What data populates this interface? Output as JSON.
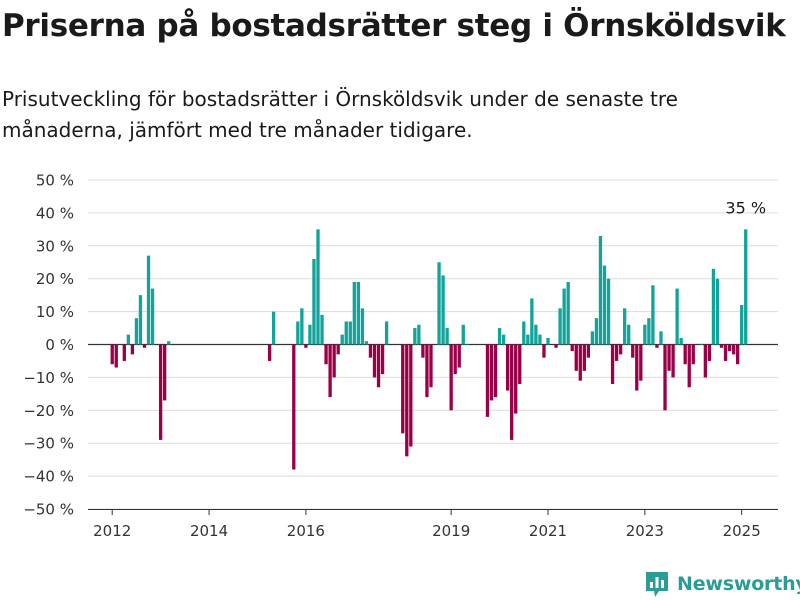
{
  "title": "Priserna på bostadsrätter steg i Örnsköldsvik",
  "subtitle": "Prisutveckling för bostadsrätter i Örnsköldsvik under de senaste tre månaderna, jämfört med tre månader tidigare.",
  "brand": {
    "name": "Newsworthy",
    "color": "#2a9d97"
  },
  "chart_data": {
    "type": "bar",
    "title": "",
    "xlabel": "",
    "ylabel": "",
    "ylim": [
      -50,
      50
    ],
    "y_ticks": [
      50,
      40,
      30,
      20,
      10,
      0,
      -10,
      -20,
      -30,
      -40,
      -50
    ],
    "y_tick_labels": [
      "50 %",
      "40 %",
      "30 %",
      "20 %",
      "10 %",
      "0 %",
      "−10 %",
      "−20 %",
      "−30 %",
      "−40 %",
      "−50 %"
    ],
    "x_ticks": [
      2012,
      2014,
      2016,
      2019,
      2021,
      2023,
      2025
    ],
    "x_tick_labels": [
      "2012",
      "2014",
      "2016",
      "2019",
      "2021",
      "2023",
      "2025"
    ],
    "grid": true,
    "legend": "none",
    "colors": {
      "positive": "#12a39b",
      "negative": "#9a0047"
    },
    "annotation": {
      "label": "35 %",
      "point": "2025-02"
    },
    "x": [
      "2012-01",
      "2012-02",
      "2012-04",
      "2012-05",
      "2012-06",
      "2012-07",
      "2012-08",
      "2012-09",
      "2012-10",
      "2012-11",
      "2013-01",
      "2013-02",
      "2013-03",
      "2015-04",
      "2015-05",
      "2015-10",
      "2015-11",
      "2015-12",
      "2016-01",
      "2016-02",
      "2016-03",
      "2016-04",
      "2016-05",
      "2016-06",
      "2016-07",
      "2016-08",
      "2016-09",
      "2016-10",
      "2016-11",
      "2016-12",
      "2017-01",
      "2017-02",
      "2017-03",
      "2017-04",
      "2017-05",
      "2017-06",
      "2017-07",
      "2017-08",
      "2017-09",
      "2018-01",
      "2018-02",
      "2018-03",
      "2018-04",
      "2018-05",
      "2018-06",
      "2018-07",
      "2018-08",
      "2018-10",
      "2018-11",
      "2018-12",
      "2019-01",
      "2019-02",
      "2019-03",
      "2019-04",
      "2019-05",
      "2019-10",
      "2019-11",
      "2019-12",
      "2020-01",
      "2020-02",
      "2020-03",
      "2020-04",
      "2020-05",
      "2020-06",
      "2020-07",
      "2020-08",
      "2020-09",
      "2020-10",
      "2020-11",
      "2020-12",
      "2021-01",
      "2021-03",
      "2021-04",
      "2021-05",
      "2021-06",
      "2021-07",
      "2021-08",
      "2021-09",
      "2021-10",
      "2021-11",
      "2021-12",
      "2022-01",
      "2022-02",
      "2022-03",
      "2022-04",
      "2022-05",
      "2022-06",
      "2022-07",
      "2022-08",
      "2022-09",
      "2022-10",
      "2022-11",
      "2022-12",
      "2023-01",
      "2023-02",
      "2023-03",
      "2023-04",
      "2023-05",
      "2023-06",
      "2023-07",
      "2023-08",
      "2023-09",
      "2023-10",
      "2023-11",
      "2023-12",
      "2024-01",
      "2024-03",
      "2024-04",
      "2024-05",
      "2024-06",
      "2024-07",
      "2024-08",
      "2024-09",
      "2024-10",
      "2024-11",
      "2024-12",
      "2025-01",
      "2025-02"
    ],
    "series": [
      {
        "values": [
          -6,
          -7,
          -5,
          3,
          -3,
          8,
          15,
          -1,
          27,
          17,
          -29,
          -17,
          1,
          -5,
          10,
          -38,
          7,
          11,
          -1,
          6,
          26,
          35,
          9,
          -6,
          -16,
          -10,
          -3,
          3,
          7,
          7,
          19,
          19,
          11,
          1,
          -4,
          -10,
          -13,
          -9,
          7,
          -27,
          -34,
          -31,
          5,
          6,
          -4,
          -16,
          -13,
          25,
          21,
          5,
          -20,
          -9,
          -7,
          6,
          0,
          -22,
          -17,
          -16,
          5,
          3,
          -14,
          -29,
          -21,
          -12,
          7,
          3,
          14,
          6,
          3,
          -4,
          2,
          -1,
          11,
          17,
          19,
          -2,
          -8,
          -11,
          -8,
          -4,
          4,
          8,
          33,
          24,
          20,
          -12,
          -5,
          -3,
          11,
          6,
          -4,
          -14,
          -11,
          6,
          8,
          18,
          -1,
          4,
          -20,
          -8,
          -10,
          17,
          2,
          -6,
          -13,
          -6,
          0,
          -10,
          -5,
          23,
          20,
          -1,
          -5,
          -2,
          -3,
          -6,
          12,
          35
        ]
      }
    ]
  }
}
